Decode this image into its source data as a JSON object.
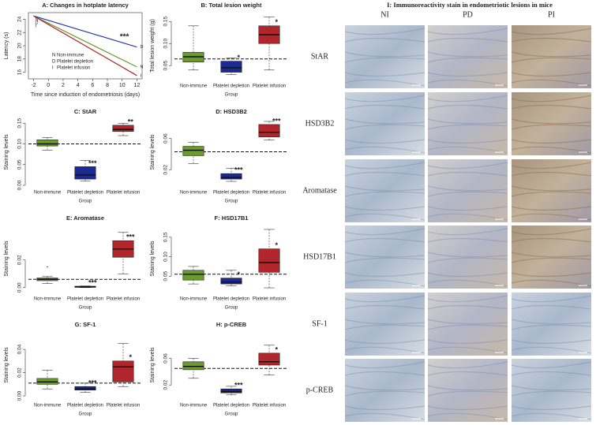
{
  "chart_data": [
    {
      "type": "line",
      "title": "A: Changes in hotplate latency",
      "xlabel": "Time since induction of endometriosis (days)",
      "ylabel": "Latency (s)",
      "x": [
        -2,
        12
      ],
      "xlim": [
        -2.7,
        12.7
      ],
      "xticks": [
        -2,
        0,
        2,
        4,
        6,
        8,
        10,
        12
      ],
      "ylim": [
        15,
        25
      ],
      "yticks": [
        16,
        18,
        20,
        22,
        24
      ],
      "series": [
        {
          "name": "Non-immune",
          "label": "N",
          "color": "#6b9a2e",
          "values": [
            24.5,
            16.8
          ]
        },
        {
          "name": "Platelet depletion",
          "label": "D",
          "color": "#2a3aa8",
          "values": [
            24.5,
            19.8
          ]
        },
        {
          "name": "Platelet infusion",
          "label": "I",
          "color": "#b0262c",
          "values": [
            24.5,
            15.5
          ]
        }
      ],
      "annotation": "***"
    },
    {
      "type": "box",
      "title": "B: Total lesion weight",
      "ylabel": "Total lesion weight (g)",
      "xlabel": "Group",
      "categories": [
        "Non-immune",
        "Platelet depletion",
        "Platelet infusion"
      ],
      "ylim": [
        0.02,
        0.17
      ],
      "yticks": [
        0.05,
        {
          "value": 0.1,
          "label": "0.10"
        },
        0.15
      ],
      "reference_line": 0.065,
      "boxes": [
        {
          "min": 0.04,
          "q1": 0.058,
          "median": 0.07,
          "q3": 0.08,
          "max": 0.14,
          "color": "#6b9a2e"
        },
        {
          "min": 0.03,
          "q1": 0.035,
          "median": 0.045,
          "q3": 0.06,
          "max": 0.067,
          "color": "#1c2a92",
          "annotation": "*"
        },
        {
          "min": 0.04,
          "q1": 0.1,
          "median": 0.12,
          "q3": 0.14,
          "max": 0.16,
          "color": "#b0262c",
          "annotation": "*"
        }
      ]
    },
    {
      "type": "box",
      "title": "C: StAR",
      "ylabel": "Staining levels",
      "xlabel": "Group",
      "categories": [
        "Non-immune",
        "Platelet depletion",
        "Platelet infusion"
      ],
      "ylim": [
        0,
        0.16
      ],
      "yticks": [
        {
          "value": 0,
          "label": "0.00"
        },
        0.05,
        {
          "value": 0.1,
          "label": "0.10"
        },
        0.15
      ],
      "reference_line": 0.1,
      "boxes": [
        {
          "min": 0.085,
          "q1": 0.095,
          "median": 0.1,
          "q3": 0.11,
          "max": 0.115,
          "color": "#6b9a2e"
        },
        {
          "min": 0.01,
          "q1": 0.015,
          "median": 0.025,
          "q3": 0.045,
          "max": 0.06,
          "color": "#1c2a92",
          "annotation": "***"
        },
        {
          "min": 0.12,
          "q1": 0.13,
          "median": 0.135,
          "q3": 0.145,
          "max": 0.15,
          "color": "#b0262c",
          "annotation": "**"
        }
      ]
    },
    {
      "type": "box",
      "title": "D: HSD3B2",
      "ylabel": "Staining levels",
      "xlabel": "Group",
      "categories": [
        "Non-immune",
        "Platelet depletion",
        "Platelet infusion"
      ],
      "ylim": [
        0,
        0.085
      ],
      "yticks": [
        0.02,
        0.06
      ],
      "reference_line": 0.043,
      "boxes": [
        {
          "min": 0.028,
          "q1": 0.038,
          "median": 0.045,
          "q3": 0.05,
          "max": 0.055,
          "color": "#6b9a2e"
        },
        {
          "min": 0.005,
          "q1": 0.008,
          "median": 0.01,
          "q3": 0.015,
          "max": 0.022,
          "color": "#1c2a92",
          "annotation": "***"
        },
        {
          "min": 0.058,
          "q1": 0.062,
          "median": 0.068,
          "q3": 0.078,
          "max": 0.082,
          "color": "#b0262c",
          "annotation": "***"
        }
      ]
    },
    {
      "type": "box",
      "title": "E: Aromatase",
      "ylabel": "Staining levels",
      "xlabel": "Group",
      "categories": [
        "Non-immune",
        "Platelet depletion",
        "Platelet infusion"
      ],
      "ylim": [
        -0.003,
        0.045
      ],
      "yticks": [
        {
          "value": 0,
          "label": "0.00"
        },
        0.02
      ],
      "reference_line": 0.006,
      "boxes": [
        {
          "min": 0.003,
          "q1": 0.005,
          "median": 0.006,
          "q3": 0.007,
          "max": 0.008,
          "color": "#6b9a2e",
          "outliers": [
            0.015
          ]
        },
        {
          "min": 0,
          "q1": 0.0002,
          "median": 0.0005,
          "q3": 0.001,
          "max": 0.0012,
          "color": "#1c2a92",
          "annotation": "***"
        },
        {
          "min": 0.01,
          "q1": 0.022,
          "median": 0.028,
          "q3": 0.034,
          "max": 0.04,
          "color": "#b0262c",
          "annotation": "***"
        }
      ]
    },
    {
      "type": "box",
      "title": "F: HSD17B1",
      "ylabel": "Staining levels",
      "xlabel": "Group",
      "categories": [
        "Non-immune",
        "Platelet depletion",
        "Platelet infusion"
      ],
      "ylim": [
        0.01,
        0.18
      ],
      "yticks": [
        0.05,
        {
          "value": 0.1,
          "label": "0.10"
        },
        0.15
      ],
      "reference_line": 0.055,
      "boxes": [
        {
          "min": 0.03,
          "q1": 0.04,
          "median": 0.055,
          "q3": 0.065,
          "max": 0.075,
          "color": "#6b9a2e"
        },
        {
          "min": 0.025,
          "q1": 0.03,
          "median": 0.035,
          "q3": 0.045,
          "max": 0.065,
          "color": "#1c2a92",
          "annotation": "*"
        },
        {
          "min": 0.02,
          "q1": 0.06,
          "median": 0.085,
          "q3": 0.12,
          "max": 0.17,
          "color": "#b0262c",
          "annotation": "*"
        }
      ]
    },
    {
      "type": "box",
      "title": "G: SF-1",
      "ylabel": "Staining levels",
      "xlabel": "Group",
      "categories": [
        "Non-immune",
        "Platelet depletion",
        "Platelet infusion"
      ],
      "ylim": [
        -0.002,
        0.055
      ],
      "yticks": [
        {
          "value": 0,
          "label": "0.00"
        },
        0.02,
        0.04
      ],
      "reference_line": 0.011,
      "boxes": [
        {
          "min": 0.006,
          "q1": 0.01,
          "median": 0.012,
          "q3": 0.015,
          "max": 0.022,
          "color": "#6b9a2e"
        },
        {
          "min": 0.003,
          "q1": 0.005,
          "median": 0.006,
          "q3": 0.008,
          "max": 0.011,
          "color": "#1c2a92",
          "annotation": "***"
        },
        {
          "min": 0.008,
          "q1": 0.012,
          "median": 0.025,
          "q3": 0.03,
          "max": 0.045,
          "color": "#b0262c",
          "annotation": "*"
        }
      ]
    },
    {
      "type": "box",
      "title": "H: p-CREB",
      "ylabel": "Staining levels",
      "xlabel": "Group",
      "categories": [
        "Non-immune",
        "Platelet depletion",
        "Platelet infusion"
      ],
      "ylim": [
        0,
        0.1
      ],
      "yticks": [
        0.02,
        0.06
      ],
      "reference_line": 0.045,
      "boxes": [
        {
          "min": 0.03,
          "q1": 0.043,
          "median": 0.048,
          "q3": 0.055,
          "max": 0.06,
          "color": "#6b9a2e"
        },
        {
          "min": 0.005,
          "q1": 0.008,
          "median": 0.01,
          "q3": 0.014,
          "max": 0.018,
          "color": "#1c2a92",
          "annotation": "***"
        },
        {
          "min": 0.035,
          "q1": 0.05,
          "median": 0.055,
          "q3": 0.068,
          "max": 0.08,
          "color": "#b0262c",
          "annotation": "*"
        }
      ]
    }
  ],
  "micrographs": {
    "title": "I: Immunoreactivity stain in endometriotic lesions in mice",
    "columns": [
      "NI",
      "PD",
      "PI"
    ],
    "rows": [
      "StAR",
      "HSD3B2",
      "Aromatase",
      "HSD17B1",
      "SF-1",
      "p-CREB"
    ]
  }
}
